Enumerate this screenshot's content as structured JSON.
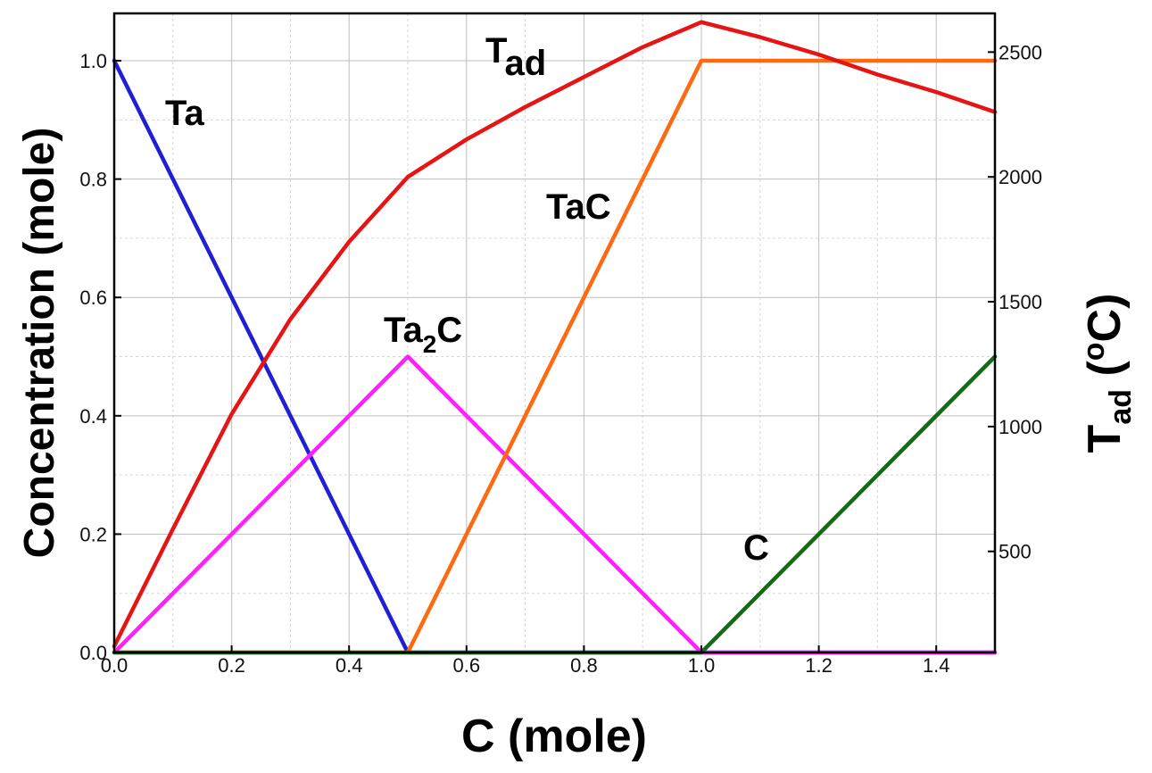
{
  "chart_data": {
    "type": "line",
    "xlabel": "C (mole)",
    "ylabel": "Concentration (mole)",
    "y2label": {
      "main": "T",
      "sub": "ad",
      "unit_open": " (",
      "unit_sup": "o",
      "unit_close": "C)"
    },
    "xlim": [
      0,
      1.5
    ],
    "ylim": [
      0,
      1.08
    ],
    "y2lim": [
      95,
      2655
    ],
    "x_ticks": [
      "0.0",
      "0.2",
      "0.4",
      "0.6",
      "0.8",
      "1.0",
      "1.2",
      "1.4"
    ],
    "x_tick_values": [
      0,
      0.2,
      0.4,
      0.6,
      0.8,
      1.0,
      1.2,
      1.4
    ],
    "y_ticks": [
      "0.0",
      "0.2",
      "0.4",
      "0.6",
      "0.8",
      "1.0"
    ],
    "y_tick_values": [
      0,
      0.2,
      0.4,
      0.6,
      0.8,
      1.0
    ],
    "y2_ticks": [
      "500",
      "1000",
      "1500",
      "2000",
      "2500"
    ],
    "y2_tick_values": [
      500,
      1000,
      1500,
      2000,
      2500
    ],
    "grid": true,
    "series": [
      {
        "name": "Ta",
        "axis": "left",
        "color": "#1f1fd6",
        "x": [
          0,
          0.5,
          1.5
        ],
        "y": [
          1.0,
          0,
          0
        ]
      },
      {
        "name": "Ta2C",
        "axis": "left",
        "color": "#ff1fff",
        "x": [
          0,
          0.5,
          1.0,
          1.5
        ],
        "y": [
          0,
          0.5,
          0,
          0
        ]
      },
      {
        "name": "TaC",
        "axis": "left",
        "color": "#ff6a10",
        "x": [
          0,
          0.5,
          1.0,
          1.5
        ],
        "y": [
          0,
          0,
          1.0,
          1.0
        ]
      },
      {
        "name": "C",
        "axis": "left",
        "color": "#156a15",
        "x": [
          0,
          1.0,
          1.5
        ],
        "y": [
          0,
          0,
          0.5
        ]
      },
      {
        "name": "Tad",
        "axis": "right",
        "color": "#e61414",
        "x": [
          0,
          0.1,
          0.2,
          0.3,
          0.4,
          0.5,
          0.6,
          0.7,
          0.8,
          0.9,
          1.0,
          1.1,
          1.2,
          1.3,
          1.4,
          1.5
        ],
        "y": [
          120,
          590,
          1050,
          1430,
          1740,
          2000,
          2150,
          2280,
          2400,
          2520,
          2620,
          2560,
          2490,
          2410,
          2340,
          2260
        ]
      }
    ]
  },
  "labels": {
    "ta": "Ta",
    "ta2c_main": "Ta",
    "ta2c_sub": "2",
    "ta2c_end": "C",
    "tac": "TaC",
    "c": "C",
    "tad_main": "T",
    "tad_sub": "ad"
  }
}
